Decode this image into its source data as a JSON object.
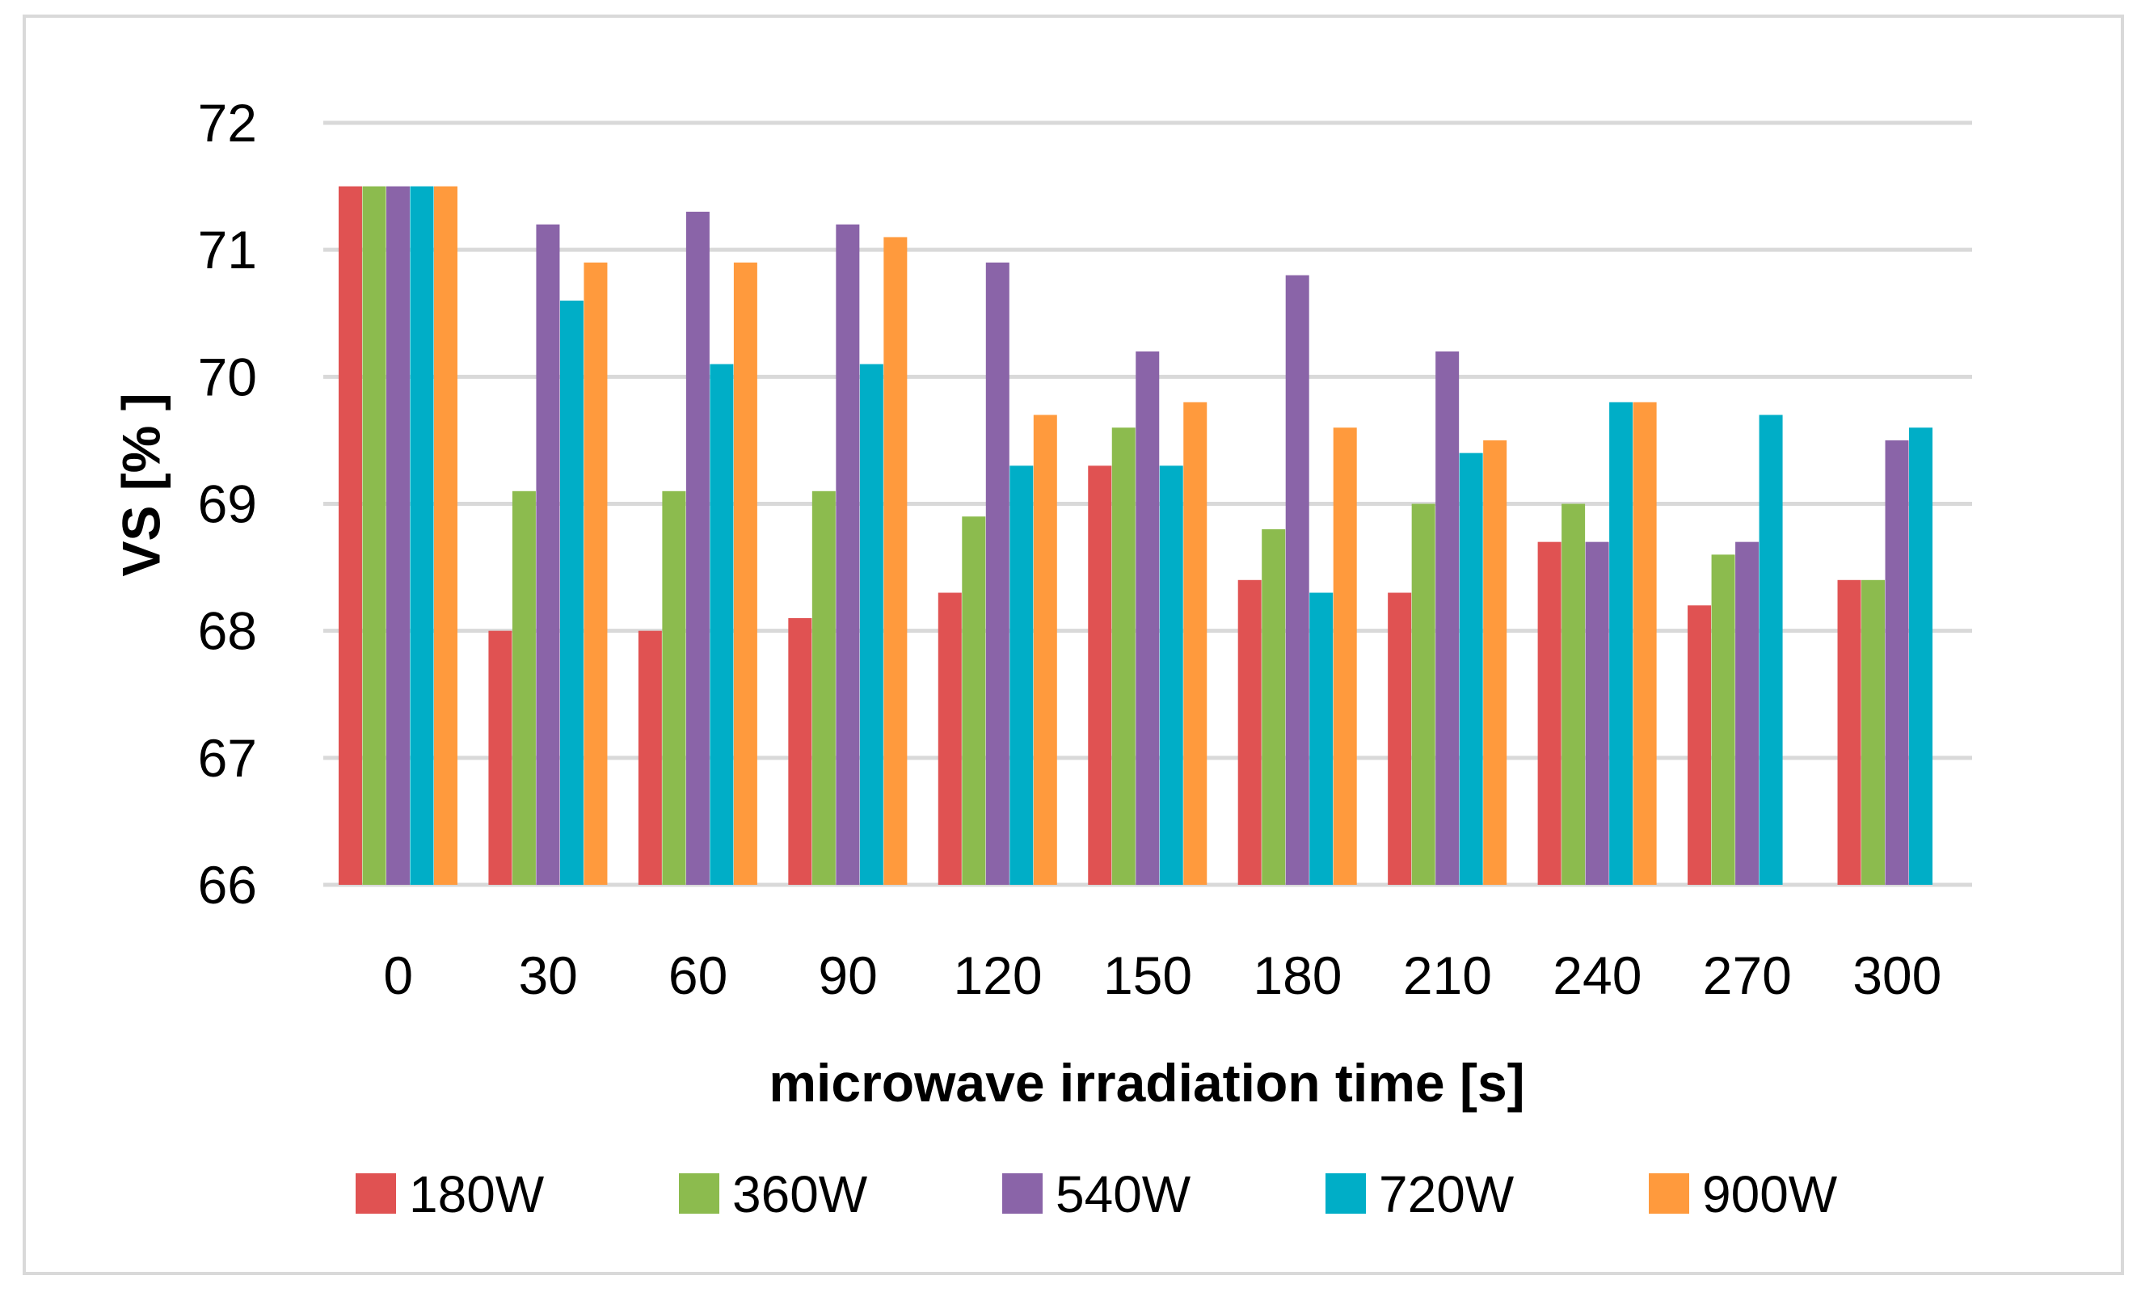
{
  "chart_data": {
    "type": "bar",
    "title": "",
    "xlabel": "microwave irradiation time [s]",
    "ylabel": "VS [% ]",
    "ylim": [
      66,
      72
    ],
    "yticks": [
      66,
      67,
      68,
      69,
      70,
      71,
      72
    ],
    "grid": true,
    "legend_position": "bottom",
    "categories": [
      "0",
      "30",
      "60",
      "90",
      "120",
      "150",
      "180",
      "210",
      "240",
      "270",
      "300"
    ],
    "series": [
      {
        "name": "180W",
        "color": "#E05252",
        "values": [
          71.5,
          68.0,
          68.0,
          68.1,
          68.3,
          69.3,
          68.4,
          68.3,
          68.7,
          68.2,
          68.4
        ]
      },
      {
        "name": "360W",
        "color": "#8CBB4E",
        "values": [
          71.5,
          69.1,
          69.1,
          69.1,
          68.9,
          69.6,
          68.8,
          69.0,
          69.0,
          68.6,
          68.4
        ]
      },
      {
        "name": "540W",
        "color": "#8A64A8",
        "values": [
          71.5,
          71.2,
          71.3,
          71.2,
          70.9,
          70.2,
          70.8,
          70.2,
          68.7,
          68.7,
          69.5
        ]
      },
      {
        "name": "720W",
        "color": "#00AEC7",
        "values": [
          71.5,
          70.6,
          70.1,
          70.1,
          69.3,
          69.3,
          68.3,
          69.4,
          69.8,
          69.7,
          69.6
        ]
      },
      {
        "name": "900W",
        "color": "#FF9A3D",
        "values": [
          71.5,
          70.9,
          70.9,
          71.1,
          69.7,
          69.8,
          69.6,
          69.5,
          69.8,
          null,
          null
        ]
      }
    ]
  }
}
